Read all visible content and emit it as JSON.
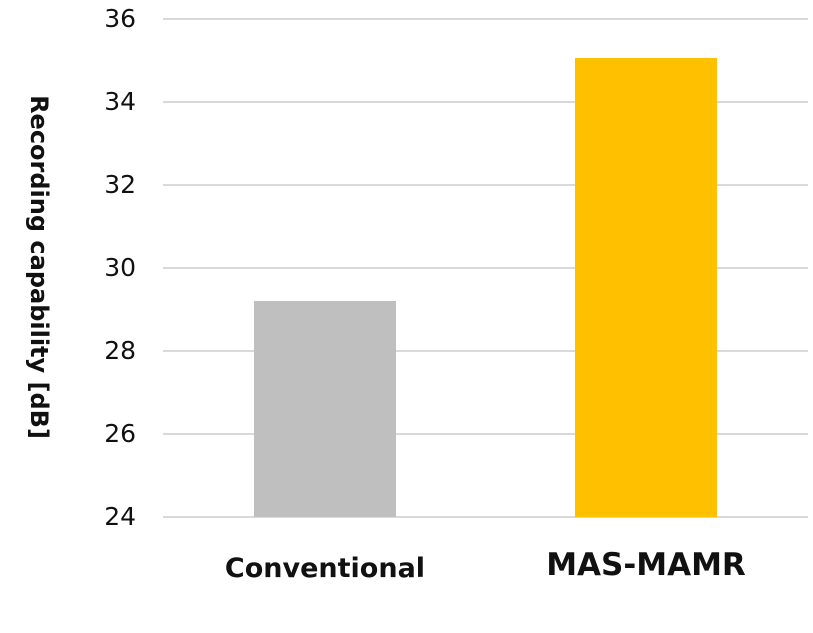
{
  "chart_data": {
    "type": "bar",
    "title": "",
    "xlabel": "",
    "ylabel": "Recording capability [dB]",
    "categories": [
      "Conventional",
      "MAS-MAMR"
    ],
    "values": [
      29.2,
      35.05
    ],
    "colors": [
      "#bfbfbf",
      "#ffc000"
    ],
    "ylim": [
      24,
      36
    ],
    "yticks": [
      24,
      26,
      28,
      30,
      32,
      34,
      36
    ],
    "grid": true,
    "legend": "none"
  }
}
